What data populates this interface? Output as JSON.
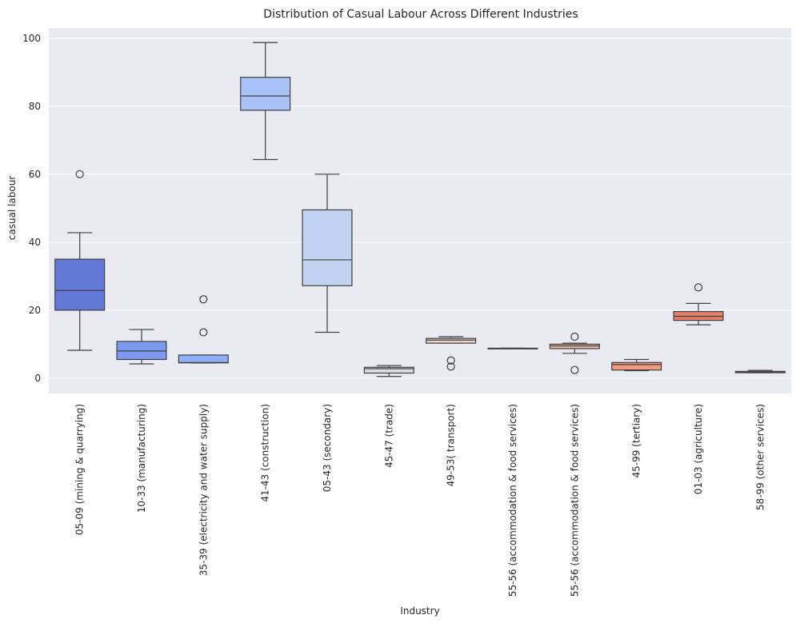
{
  "chart_data": {
    "type": "box",
    "title": "Distribution of Casual Labour Across Different Industries",
    "xlabel": "Industry",
    "ylabel": "casual labour",
    "ylim": [
      -4.5,
      103
    ],
    "yticks": [
      0,
      20,
      40,
      60,
      80,
      100
    ],
    "grid": true,
    "legend": "none",
    "categories": [
      "05-09 (mining & quarrying)",
      "10-33 (manufacturing)",
      "35-39 (electricity and  water supply)",
      "41-43 (construction)",
      "05-43 (secondary)",
      "45-47 (trade)",
      "49-53( transport)",
      "55-56 (accommodation & food services)",
      "55-56 (accommodation & food services)",
      "45-99 (tertiary)",
      "01-03 (agriculture)",
      "58-99 (other services)"
    ],
    "boxes": [
      {
        "whislo": 8.2,
        "q1": 20.0,
        "med": 25.8,
        "q3": 35.0,
        "whishi": 42.8,
        "fliers": [
          60.0
        ],
        "color": "#6478d6"
      },
      {
        "whislo": 4.2,
        "q1": 5.5,
        "med": 8.0,
        "q3": 10.8,
        "whishi": 14.3,
        "fliers": [],
        "color": "#7b9af0"
      },
      {
        "whislo": 4.5,
        "q1": 4.5,
        "med": 4.6,
        "q3": 6.8,
        "whishi": 6.8,
        "fliers": [
          13.5,
          23.2
        ],
        "color": "#8daff6"
      },
      {
        "whislo": 64.3,
        "q1": 78.8,
        "med": 83.0,
        "q3": 88.5,
        "whishi": 98.7,
        "fliers": [],
        "color": "#a9c3f8"
      },
      {
        "whislo": 13.5,
        "q1": 27.2,
        "med": 34.8,
        "q3": 49.5,
        "whishi": 60.0,
        "fliers": [],
        "color": "#c2d3f1"
      },
      {
        "whislo": 0.5,
        "q1": 1.5,
        "med": 2.8,
        "q3": 3.2,
        "whishi": 3.7,
        "fliers": [],
        "color": "#d9dce1"
      },
      {
        "whislo": 10.3,
        "q1": 10.3,
        "med": 11.2,
        "q3": 11.7,
        "whishi": 12.2,
        "fliers": [
          5.2,
          3.4
        ],
        "color": "#ead5c8"
      },
      {
        "whislo": 8.8,
        "q1": 8.8,
        "med": 8.8,
        "q3": 8.8,
        "whishi": 8.8,
        "fliers": [],
        "color": "#f0cdb8"
      },
      {
        "whislo": 7.3,
        "q1": 8.7,
        "med": 9.5,
        "q3": 10.0,
        "whishi": 10.3,
        "fliers": [
          12.2,
          2.4
        ],
        "color": "#f3bfa4"
      },
      {
        "whislo": 2.2,
        "q1": 2.4,
        "med": 4.0,
        "q3": 4.6,
        "whishi": 5.5,
        "fliers": [],
        "color": "#f19b80"
      },
      {
        "whislo": 15.7,
        "q1": 17.0,
        "med": 18.2,
        "q3": 19.6,
        "whishi": 22.0,
        "fliers": [
          26.7
        ],
        "color": "#e5816a"
      },
      {
        "whislo": 1.6,
        "q1": 1.6,
        "med": 1.9,
        "q3": 2.0,
        "whishi": 2.3,
        "fliers": [],
        "color": "#cf5f52"
      }
    ]
  }
}
